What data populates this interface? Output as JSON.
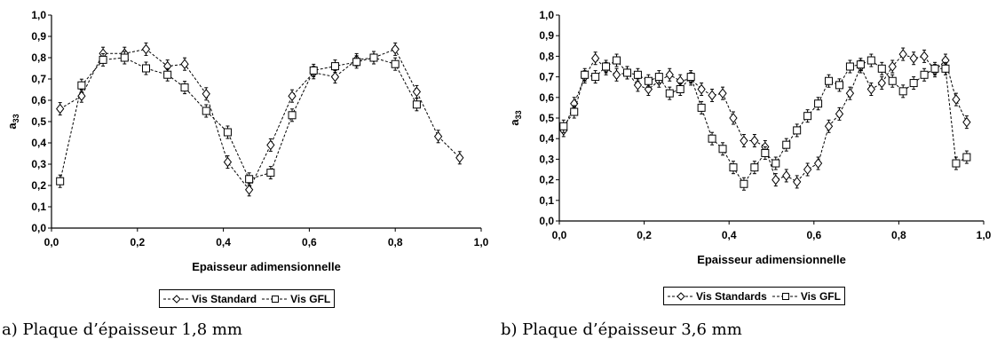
{
  "chart_data": [
    {
      "type": "line",
      "caption": "a) Plaque d’épaisseur 1,8 mm",
      "xlabel": "Epaisseur adimensionnelle",
      "ylabel_main": "a",
      "ylabel_sub": "33",
      "xlim": [
        0,
        1
      ],
      "ylim": [
        0,
        1
      ],
      "xticks": [
        "0,0",
        "0,2",
        "0,4",
        "0,6",
        "0,8",
        "1,0"
      ],
      "yticks": [
        "0,0",
        "0,1",
        "0,2",
        "0,3",
        "0,4",
        "0,5",
        "0,6",
        "0,7",
        "0,8",
        "0,9",
        "1,0"
      ],
      "grid": false,
      "legend_position": "bottom",
      "series": [
        {
          "name": "Vis Standard",
          "marker": "diamond",
          "x": [
            0.02,
            0.07,
            0.12,
            0.17,
            0.22,
            0.27,
            0.31,
            0.36,
            0.41,
            0.46,
            0.51,
            0.56,
            0.61,
            0.66,
            0.71,
            0.75,
            0.8,
            0.85,
            0.9,
            0.95
          ],
          "y": [
            0.56,
            0.62,
            0.82,
            0.82,
            0.84,
            0.76,
            0.77,
            0.63,
            0.31,
            0.18,
            0.39,
            0.62,
            0.73,
            0.71,
            0.79,
            0.8,
            0.84,
            0.64,
            0.43,
            0.33
          ]
        },
        {
          "name": "Vis GFL",
          "marker": "square",
          "x": [
            0.02,
            0.07,
            0.12,
            0.17,
            0.22,
            0.27,
            0.31,
            0.36,
            0.41,
            0.46,
            0.51,
            0.56,
            0.61,
            0.66,
            0.71,
            0.75,
            0.8,
            0.85
          ],
          "y": [
            0.22,
            0.67,
            0.79,
            0.8,
            0.75,
            0.72,
            0.66,
            0.55,
            0.45,
            0.23,
            0.26,
            0.53,
            0.74,
            0.76,
            0.78,
            0.8,
            0.77,
            0.58
          ]
        }
      ]
    },
    {
      "type": "line",
      "caption": "b) Plaque d’épaisseur 3,6 mm",
      "xlabel": "Epaisseur adimensionnelle",
      "ylabel_main": "a",
      "ylabel_sub": "33",
      "xlim": [
        0,
        1
      ],
      "ylim": [
        0,
        1
      ],
      "xticks": [
        "0,0",
        "0,2",
        "0,4",
        "0,6",
        "0,8",
        "1,0"
      ],
      "yticks": [
        "0,0",
        "0,1",
        "0,2",
        "0,3",
        "0,4",
        "0,5",
        "0,6",
        "0,7",
        "0,8",
        "0,9",
        "1,0"
      ],
      "grid": false,
      "legend_position": "bottom",
      "series": [
        {
          "name": "Vis Standards",
          "marker": "diamond",
          "x": [
            0.01,
            0.035,
            0.06,
            0.085,
            0.11,
            0.135,
            0.16,
            0.185,
            0.21,
            0.235,
            0.26,
            0.285,
            0.31,
            0.335,
            0.36,
            0.385,
            0.41,
            0.435,
            0.46,
            0.485,
            0.51,
            0.535,
            0.56,
            0.585,
            0.61,
            0.635,
            0.66,
            0.685,
            0.71,
            0.735,
            0.76,
            0.785,
            0.81,
            0.835,
            0.86,
            0.885,
            0.91,
            0.935,
            0.96
          ],
          "y": [
            0.44,
            0.57,
            0.7,
            0.79,
            0.74,
            0.71,
            0.72,
            0.66,
            0.64,
            0.68,
            0.71,
            0.68,
            0.69,
            0.64,
            0.61,
            0.62,
            0.5,
            0.39,
            0.39,
            0.36,
            0.2,
            0.22,
            0.19,
            0.25,
            0.28,
            0.46,
            0.52,
            0.62,
            0.75,
            0.64,
            0.67,
            0.75,
            0.81,
            0.79,
            0.8,
            0.73,
            0.78,
            0.59,
            0.48
          ]
        },
        {
          "name": "Vis GFL",
          "marker": "square",
          "x": [
            0.01,
            0.035,
            0.06,
            0.085,
            0.11,
            0.135,
            0.16,
            0.185,
            0.21,
            0.235,
            0.26,
            0.285,
            0.31,
            0.335,
            0.36,
            0.385,
            0.41,
            0.435,
            0.46,
            0.485,
            0.51,
            0.535,
            0.56,
            0.585,
            0.61,
            0.635,
            0.66,
            0.685,
            0.71,
            0.735,
            0.76,
            0.785,
            0.81,
            0.835,
            0.86,
            0.885,
            0.91,
            0.935,
            0.96
          ],
          "y": [
            0.46,
            0.53,
            0.71,
            0.7,
            0.75,
            0.78,
            0.72,
            0.71,
            0.68,
            0.7,
            0.62,
            0.64,
            0.7,
            0.55,
            0.4,
            0.35,
            0.26,
            0.18,
            0.26,
            0.33,
            0.28,
            0.37,
            0.44,
            0.51,
            0.57,
            0.68,
            0.66,
            0.75,
            0.76,
            0.78,
            0.74,
            0.68,
            0.63,
            0.67,
            0.71,
            0.74,
            0.74,
            0.28,
            0.31
          ]
        }
      ]
    }
  ]
}
